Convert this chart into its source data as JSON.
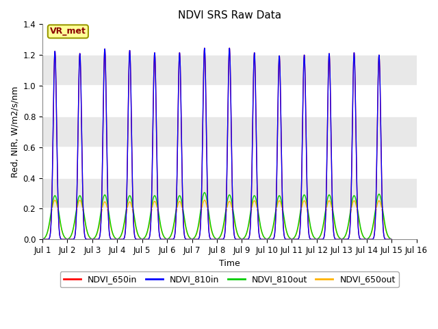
{
  "title": "NDVI SRS Raw Data",
  "xlabel": "Time",
  "ylabel": "Red, NIR, W/m2/s/nm",
  "annotation_text": "VR_met",
  "annotation_color": "#8B0000",
  "annotation_bg": "#FFFF99",
  "annotation_edge": "#999900",
  "xlim": [
    0,
    15
  ],
  "ylim": [
    0.0,
    1.4
  ],
  "yticks": [
    0.0,
    0.2,
    0.4,
    0.6,
    0.8,
    1.0,
    1.2,
    1.4
  ],
  "xtick_labels": [
    "Jul 1",
    "Jul 2",
    "Jul 3",
    "Jul 4",
    "Jul 5",
    "Jul 6",
    "Jul 7",
    "Jul 8",
    "Jul 9",
    "Jul 10",
    "Jul 11",
    "Jul 12",
    "Jul 13",
    "Jul 14",
    "Jul 15",
    "Jul 16"
  ],
  "xtick_positions": [
    0,
    1,
    2,
    3,
    4,
    5,
    6,
    7,
    8,
    9,
    10,
    11,
    12,
    13,
    14,
    15
  ],
  "series": [
    {
      "label": "NDVI_650in",
      "color": "#FF0000",
      "lw": 1.0,
      "zorder": 3
    },
    {
      "label": "NDVI_810in",
      "color": "#0000FF",
      "lw": 1.0,
      "zorder": 4
    },
    {
      "label": "NDVI_810out",
      "color": "#00CC00",
      "lw": 1.0,
      "zorder": 2
    },
    {
      "label": "NDVI_650out",
      "color": "#FFB300",
      "lw": 1.0,
      "zorder": 1
    }
  ],
  "plot_bg_color": "#E8E8E8",
  "band_color_light": "#F0F0F0",
  "band_color_dark": "#DCDCDC",
  "grid_color": "#FFFFFF",
  "n_cycles": 14,
  "peak_high": [
    1.225,
    1.21,
    1.24,
    1.23,
    1.215,
    1.215,
    1.245,
    1.245,
    1.215,
    1.195,
    1.2,
    1.21,
    1.215,
    1.2
  ],
  "peak_810out": [
    0.285,
    0.285,
    0.29,
    0.285,
    0.285,
    0.285,
    0.305,
    0.29,
    0.285,
    0.285,
    0.29,
    0.29,
    0.285,
    0.295
  ],
  "peak_650out": [
    0.255,
    0.255,
    0.245,
    0.245,
    0.248,
    0.248,
    0.255,
    0.248,
    0.252,
    0.252,
    0.252,
    0.252,
    0.252,
    0.252
  ],
  "figsize": [
    6.4,
    4.8
  ],
  "dpi": 100
}
